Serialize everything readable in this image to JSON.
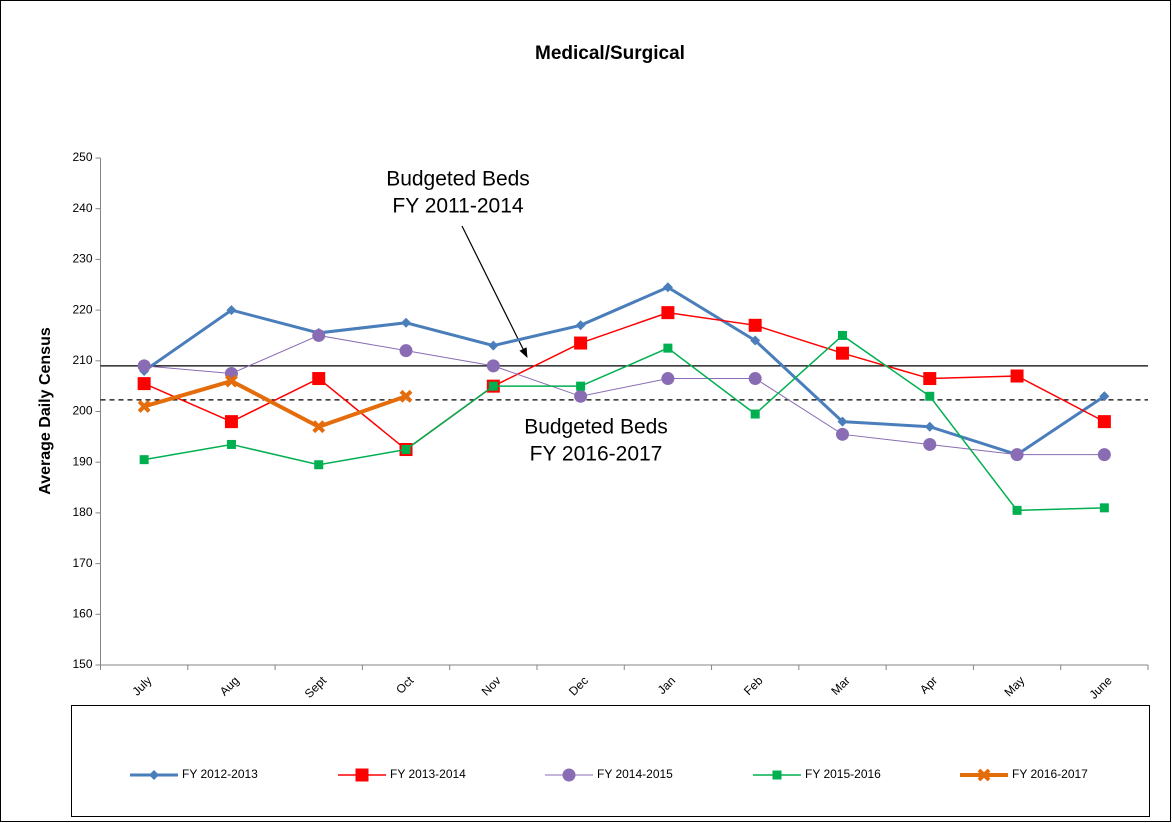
{
  "chart_data": {
    "type": "line",
    "title": "Medical/Surgical",
    "y_label": "Average Daily Census",
    "categories": [
      "July",
      "Aug",
      "Sept",
      "Oct",
      "Nov",
      "Dec",
      "Jan",
      "Feb",
      "Mar",
      "Apr",
      "May",
      "June"
    ],
    "ylim": [
      150,
      250
    ],
    "yticks": [
      150,
      160,
      170,
      180,
      190,
      200,
      210,
      220,
      230,
      240,
      250
    ],
    "grid": false,
    "legend": "bottom",
    "series": [
      {
        "name": "FY 2012-2013",
        "color": "#4a7ebb",
        "marker": "diamond",
        "width": 3,
        "values": [
          208,
          220,
          215.5,
          217.5,
          213,
          217,
          224.5,
          214,
          198,
          197,
          191.5,
          203
        ]
      },
      {
        "name": "FY 2013-2014",
        "color": "#ff0000",
        "marker": "square",
        "width": 1.5,
        "values": [
          205.5,
          198,
          206.5,
          192.5,
          205,
          213.5,
          219.5,
          217,
          211.5,
          206.5,
          207,
          198
        ]
      },
      {
        "name": "FY 2014-2015",
        "color": "#8a6cb4",
        "marker": "circle",
        "width": 1,
        "values": [
          209,
          207.5,
          215,
          212,
          209,
          203,
          206.5,
          206.5,
          195.5,
          193.5,
          191.5,
          191.5
        ]
      },
      {
        "name": "FY 2015-2016",
        "color": "#00b050",
        "marker": "smallsquare",
        "width": 1.5,
        "values": [
          190.5,
          193.5,
          189.5,
          192.5,
          205,
          205,
          212.5,
          199.5,
          215,
          203,
          180.5,
          181
        ]
      },
      {
        "name": "FY 2016-2017",
        "color": "#e46c0a",
        "marker": "x",
        "width": 4,
        "values": [
          201,
          206,
          197,
          203,
          null,
          null,
          null,
          null,
          null,
          null,
          null,
          null
        ]
      }
    ],
    "reference_lines": [
      {
        "value": 209,
        "style": "solid",
        "label": [
          "Budgeted Beds",
          "FY 2011-2014"
        ]
      },
      {
        "value": 202.3,
        "style": "dashed",
        "label": [
          "Budgeted Beds",
          "FY 2016-2017"
        ]
      }
    ]
  }
}
